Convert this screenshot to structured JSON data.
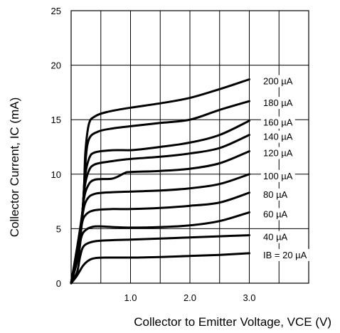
{
  "chart_data": {
    "type": "line",
    "title": "",
    "xlabel": "Collector to Emitter Voltage, VCE (V)",
    "ylabel": "Collector Current, IC (mA)",
    "xlim": [
      0,
      4
    ],
    "ylim": [
      0,
      25
    ],
    "x_ticks": [
      1.0,
      2.0,
      3.0
    ],
    "x_tick_labels": [
      "1.0",
      "2.0",
      "3.0"
    ],
    "y_ticks": [
      0,
      5,
      10,
      15,
      20,
      25
    ],
    "y_tick_labels": [
      "0",
      "5",
      "10",
      "15",
      "20",
      "25"
    ],
    "grid": true,
    "series": [
      {
        "name": "IB = 20 µA",
        "points": [
          [
            0,
            0
          ],
          [
            0.1,
            0.7
          ],
          [
            0.2,
            1.6
          ],
          [
            0.3,
            2.1
          ],
          [
            0.4,
            2.3
          ],
          [
            0.6,
            2.35
          ],
          [
            1.0,
            2.35
          ],
          [
            1.5,
            2.4
          ],
          [
            2.0,
            2.5
          ],
          [
            2.5,
            2.6
          ],
          [
            3.0,
            2.75
          ]
        ]
      },
      {
        "name": "40 µA",
        "points": [
          [
            0,
            0
          ],
          [
            0.1,
            1.0
          ],
          [
            0.15,
            2.4
          ],
          [
            0.2,
            3.3
          ],
          [
            0.3,
            3.7
          ],
          [
            0.5,
            3.9
          ],
          [
            1.0,
            4.0
          ],
          [
            1.5,
            4.1
          ],
          [
            2.0,
            4.2
          ],
          [
            2.5,
            4.3
          ],
          [
            3.0,
            4.4
          ]
        ]
      },
      {
        "name": "60 µA",
        "points": [
          [
            0,
            0
          ],
          [
            0.12,
            2.4
          ],
          [
            0.17,
            4.2
          ],
          [
            0.25,
            4.9
          ],
          [
            0.4,
            5.2
          ],
          [
            0.7,
            5.15
          ],
          [
            1.0,
            5.1
          ],
          [
            1.5,
            5.15
          ],
          [
            2.0,
            5.3
          ],
          [
            2.5,
            5.7
          ],
          [
            3.0,
            6.5
          ]
        ]
      },
      {
        "name": "80 µA",
        "points": [
          [
            0,
            0
          ],
          [
            0.13,
            3.0
          ],
          [
            0.18,
            5.4
          ],
          [
            0.25,
            6.3
          ],
          [
            0.4,
            6.7
          ],
          [
            0.7,
            6.8
          ],
          [
            1.0,
            6.8
          ],
          [
            1.5,
            6.9
          ],
          [
            2.0,
            7.1
          ],
          [
            2.5,
            7.4
          ],
          [
            3.0,
            8.3
          ]
        ]
      },
      {
        "name": "100 µA",
        "points": [
          [
            0,
            0
          ],
          [
            0.14,
            3.6
          ],
          [
            0.2,
            6.5
          ],
          [
            0.27,
            7.7
          ],
          [
            0.4,
            8.2
          ],
          [
            0.7,
            8.35
          ],
          [
            1.0,
            8.4
          ],
          [
            1.5,
            8.5
          ],
          [
            2.0,
            8.7
          ],
          [
            2.5,
            9.1
          ],
          [
            3.0,
            10.0
          ]
        ]
      },
      {
        "name": "120 µA",
        "points": [
          [
            0,
            0
          ],
          [
            0.15,
            4.2
          ],
          [
            0.21,
            7.5
          ],
          [
            0.28,
            8.9
          ],
          [
            0.4,
            9.5
          ],
          [
            0.7,
            9.6
          ],
          [
            0.9,
            10.1
          ],
          [
            1.0,
            10.2
          ],
          [
            1.5,
            10.3
          ],
          [
            2.0,
            10.5
          ],
          [
            2.5,
            11.0
          ],
          [
            3.0,
            12.1
          ]
        ]
      },
      {
        "name": "140 µA",
        "points": [
          [
            0,
            0
          ],
          [
            0.16,
            4.8
          ],
          [
            0.22,
            8.5
          ],
          [
            0.29,
            10.2
          ],
          [
            0.4,
            10.9
          ],
          [
            0.7,
            11.2
          ],
          [
            1.0,
            11.4
          ],
          [
            1.5,
            11.6
          ],
          [
            2.0,
            11.9
          ],
          [
            2.5,
            12.4
          ],
          [
            3.0,
            13.6
          ]
        ]
      },
      {
        "name": "160 µA",
        "points": [
          [
            0,
            0
          ],
          [
            0.17,
            5.4
          ],
          [
            0.23,
            9.6
          ],
          [
            0.3,
            11.4
          ],
          [
            0.4,
            12.0
          ],
          [
            0.7,
            12.2
          ],
          [
            1.0,
            12.2
          ],
          [
            1.2,
            12.3
          ],
          [
            1.5,
            12.5
          ],
          [
            2.0,
            12.9
          ],
          [
            2.5,
            13.6
          ],
          [
            3.0,
            14.9
          ]
        ]
      },
      {
        "name": "180 µA",
        "points": [
          [
            0,
            0
          ],
          [
            0.18,
            6.0
          ],
          [
            0.24,
            11.0
          ],
          [
            0.3,
            13.2
          ],
          [
            0.45,
            13.9
          ],
          [
            0.7,
            14.2
          ],
          [
            1.0,
            14.4
          ],
          [
            1.5,
            14.7
          ],
          [
            2.0,
            15.0
          ],
          [
            2.5,
            15.9
          ],
          [
            3.0,
            16.7
          ]
        ]
      },
      {
        "name": "200 µA",
        "points": [
          [
            0,
            0
          ],
          [
            0.19,
            6.6
          ],
          [
            0.24,
            12.0
          ],
          [
            0.3,
            14.6
          ],
          [
            0.4,
            15.3
          ],
          [
            0.6,
            15.7
          ],
          [
            1.0,
            16.1
          ],
          [
            1.5,
            16.5
          ],
          [
            2.0,
            17.0
          ],
          [
            2.5,
            17.8
          ],
          [
            3.0,
            18.7
          ]
        ]
      }
    ]
  }
}
